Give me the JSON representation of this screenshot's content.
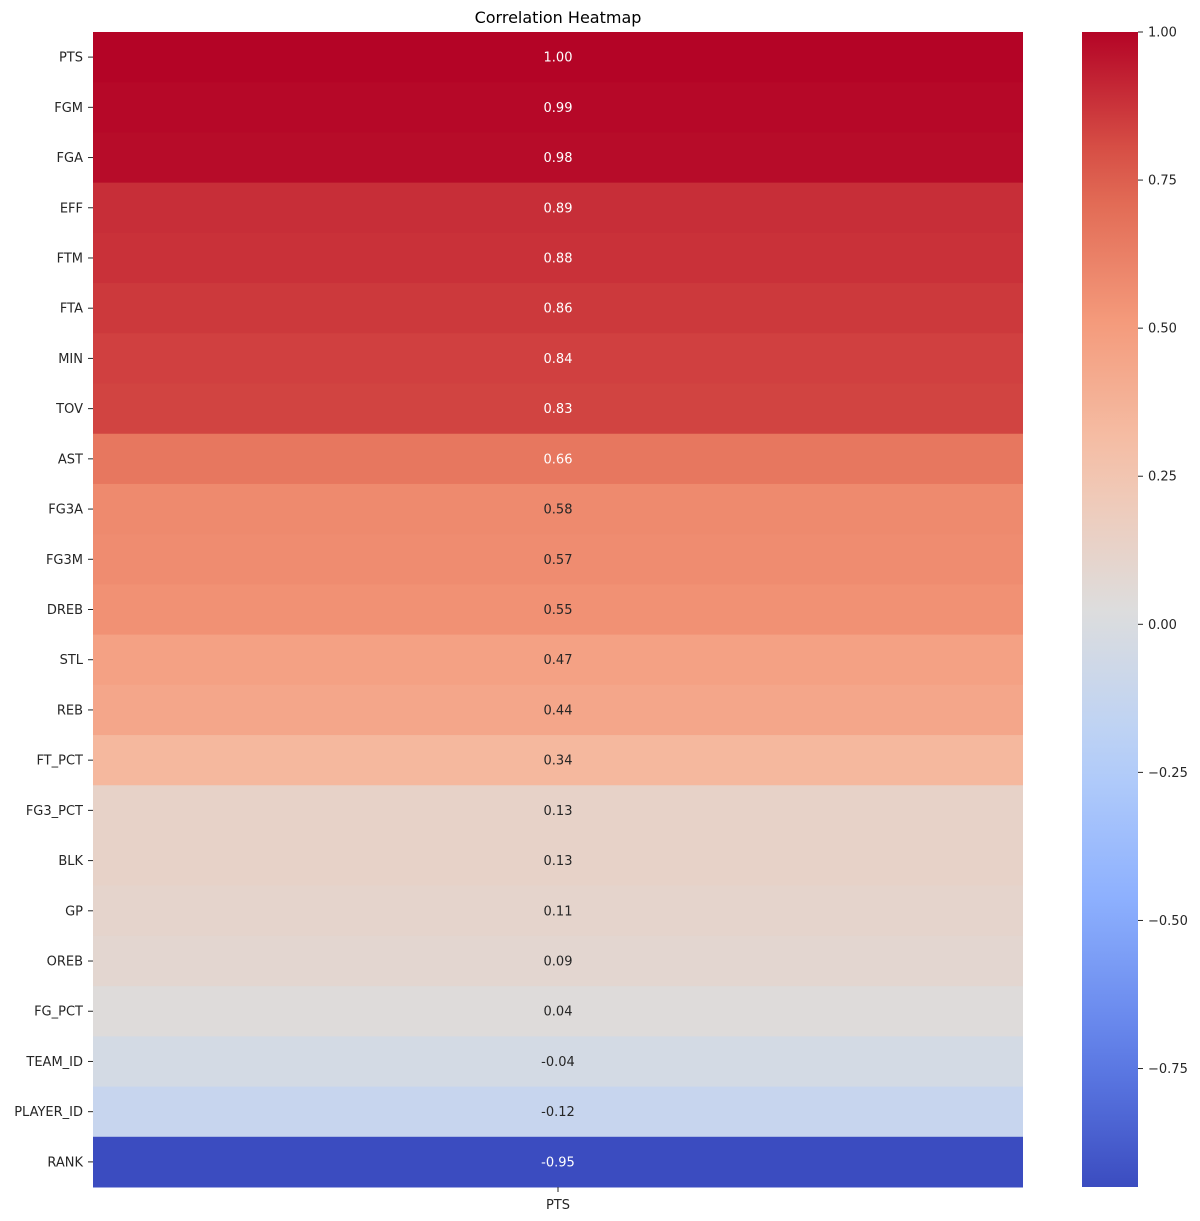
{
  "chart_data": {
    "type": "heatmap",
    "title": "Correlation Heatmap",
    "colormap": "coolwarm",
    "x_categories": [
      "PTS"
    ],
    "y_categories": [
      "PTS",
      "FGM",
      "FGA",
      "EFF",
      "FTM",
      "FTA",
      "MIN",
      "TOV",
      "AST",
      "FG3A",
      "FG3M",
      "DREB",
      "STL",
      "REB",
      "FT_PCT",
      "FG3_PCT",
      "BLK",
      "GP",
      "OREB",
      "FG_PCT",
      "TEAM_ID",
      "PLAYER_ID",
      "RANK"
    ],
    "values": [
      1.0,
      0.99,
      0.98,
      0.89,
      0.88,
      0.86,
      0.84,
      0.83,
      0.66,
      0.58,
      0.57,
      0.55,
      0.47,
      0.44,
      0.34,
      0.13,
      0.13,
      0.11,
      0.09,
      0.04,
      -0.04,
      -0.12,
      -0.95
    ],
    "annotations": [
      "1.00",
      "0.99",
      "0.98",
      "0.89",
      "0.88",
      "0.86",
      "0.84",
      "0.83",
      "0.66",
      "0.58",
      "0.57",
      "0.55",
      "0.47",
      "0.44",
      "0.34",
      "0.13",
      "0.13",
      "0.11",
      "0.09",
      "0.04",
      "-0.04",
      "-0.12",
      "-0.95"
    ],
    "colorbar": {
      "range": [
        -0.95,
        1.0
      ],
      "ticks": [
        1.0,
        0.75,
        0.5,
        0.25,
        0.0,
        -0.25,
        -0.5,
        -0.75
      ],
      "tick_labels": [
        "1.00",
        "0.75",
        "0.50",
        "0.25",
        "0.00",
        "−0.25",
        "−0.50",
        "−0.75"
      ]
    },
    "grid": false,
    "legend": "colorbar-right"
  }
}
